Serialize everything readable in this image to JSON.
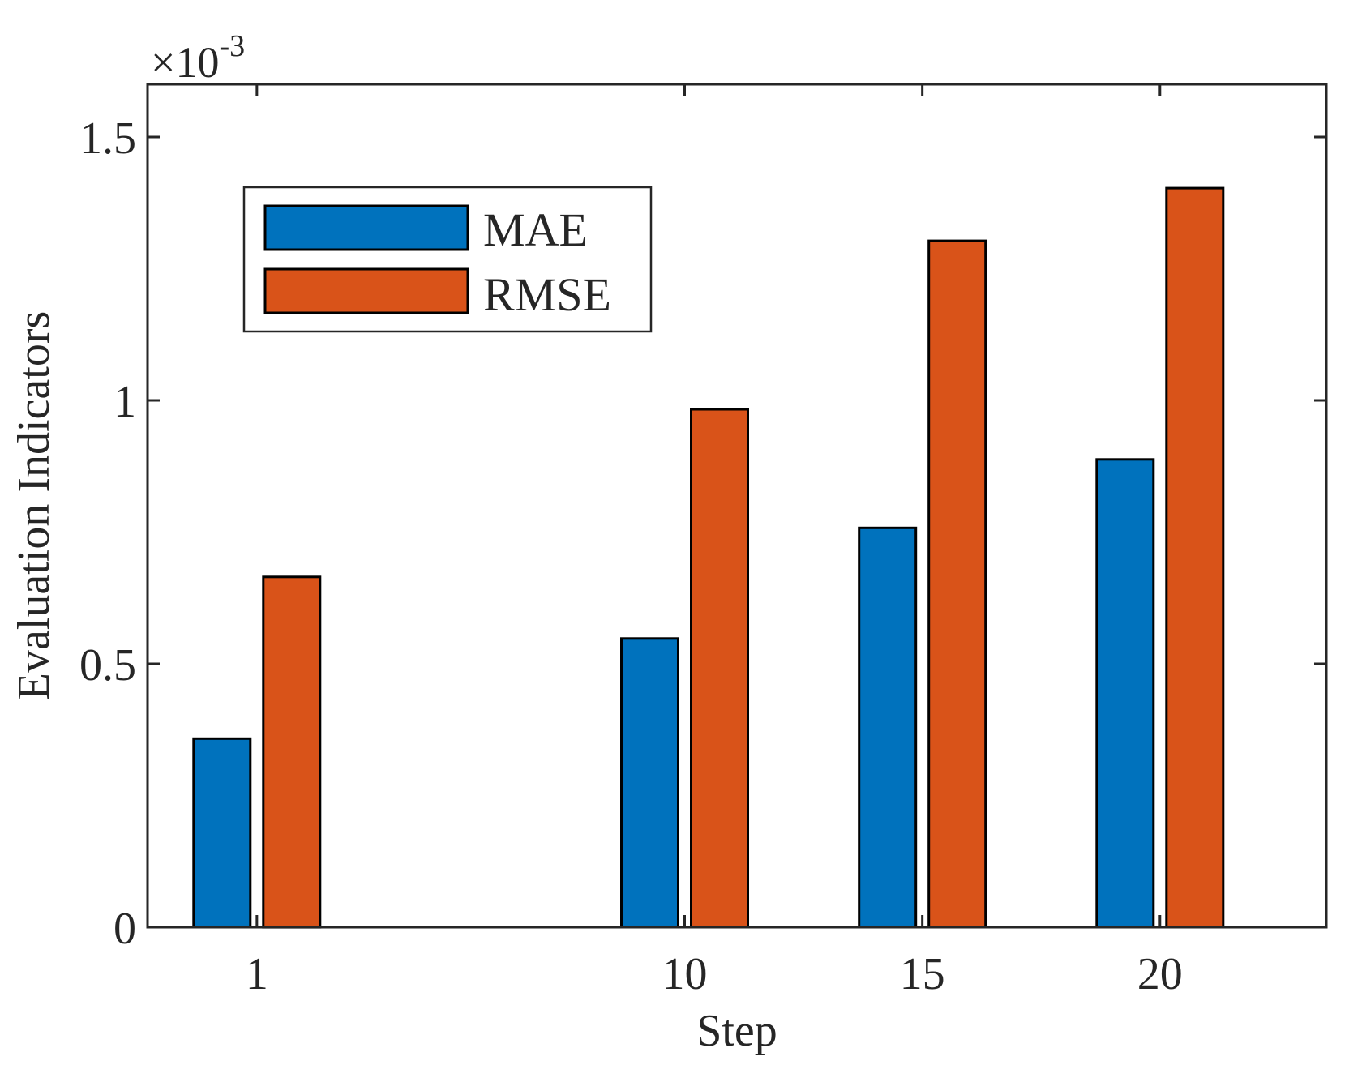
{
  "chart_data": {
    "type": "bar",
    "categories": [
      "1",
      "10",
      "15",
      "20"
    ],
    "x": [
      1,
      10,
      15,
      20
    ],
    "series": [
      {
        "name": "MAE",
        "color": "#0072BD",
        "values": [
          0.358,
          0.548,
          0.758,
          0.888
        ]
      },
      {
        "name": "RMSE",
        "color": "#D95319",
        "values": [
          0.665,
          0.983,
          1.303,
          1.403
        ]
      }
    ],
    "title": "",
    "xlabel": "Step",
    "ylabel": "Evaluation Indicators",
    "exponent_label": "×10",
    "exponent_power": "-3",
    "xlim": [
      -1.3,
      23.5
    ],
    "ylim": [
      0,
      1.6
    ],
    "xticks": [
      1,
      10,
      15,
      20
    ],
    "yticks": [
      0,
      0.5,
      1,
      1.5
    ],
    "ytick_labels": [
      "0",
      "0.5",
      "1",
      "1.5"
    ],
    "grid": false,
    "legend_position": "top-left"
  }
}
